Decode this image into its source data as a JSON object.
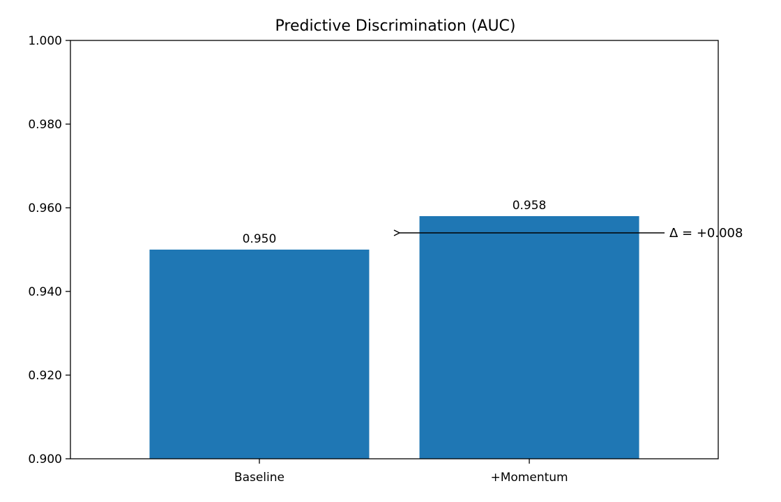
{
  "chart_data": {
    "type": "bar",
    "title": "Predictive Discrimination (AUC)",
    "xlabel": "",
    "ylabel": "",
    "categories": [
      "Baseline",
      "+Momentum"
    ],
    "values": [
      0.95,
      0.958
    ],
    "value_labels": [
      "0.950",
      "0.958"
    ],
    "ylim": [
      0.9,
      1.0
    ],
    "yticks": [
      0.9,
      0.92,
      0.94,
      0.96,
      0.98,
      1.0
    ],
    "ytick_labels": [
      "0.900",
      "0.920",
      "0.940",
      "0.960",
      "0.980",
      "1.000"
    ],
    "grid": false,
    "legend": "none",
    "bar_color": "#1f77b4",
    "annotation": {
      "text": "Δ = +0.008",
      "arrow_from_x": "+Momentum",
      "arrow_to_x": "between Baseline and +Momentum",
      "y": 0.954
    }
  }
}
